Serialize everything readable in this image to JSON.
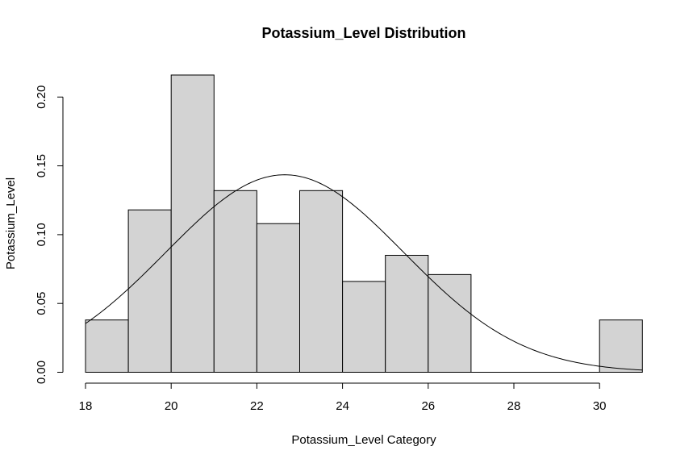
{
  "chart_data": {
    "type": "bar",
    "subtype": "histogram",
    "title": "Potassium_Level Distribution",
    "xlabel": "Potassium_Level Category",
    "ylabel": "Potassium_Level",
    "xlim": [
      18,
      31
    ],
    "ylim": [
      0,
      0.22
    ],
    "x_ticks": [
      18,
      20,
      22,
      24,
      26,
      28,
      30
    ],
    "y_ticks": [
      0.0,
      0.05,
      0.1,
      0.15,
      0.2
    ],
    "y_tick_labels": [
      "0.00",
      "0.05",
      "0.10",
      "0.15",
      "0.20"
    ],
    "bins": [
      {
        "start": 18,
        "end": 19,
        "density": 0.038
      },
      {
        "start": 19,
        "end": 20,
        "density": 0.118
      },
      {
        "start": 20,
        "end": 21,
        "density": 0.216
      },
      {
        "start": 21,
        "end": 22,
        "density": 0.132
      },
      {
        "start": 22,
        "end": 23,
        "density": 0.108
      },
      {
        "start": 23,
        "end": 24,
        "density": 0.132
      },
      {
        "start": 24,
        "end": 25,
        "density": 0.066
      },
      {
        "start": 25,
        "end": 26,
        "density": 0.085
      },
      {
        "start": 26,
        "end": 27,
        "density": 0.071
      },
      {
        "start": 27,
        "end": 28,
        "density": 0
      },
      {
        "start": 28,
        "end": 29,
        "density": 0
      },
      {
        "start": 29,
        "end": 30,
        "density": 0
      },
      {
        "start": 30,
        "end": 31,
        "density": 0.038
      }
    ],
    "density_curve": {
      "type": "normal",
      "mean": 22.65,
      "sd": 2.78
    },
    "grid": false,
    "colors": {
      "bar_fill": "#d3d3d3",
      "bar_stroke": "#000000",
      "curve": "#000000"
    }
  }
}
